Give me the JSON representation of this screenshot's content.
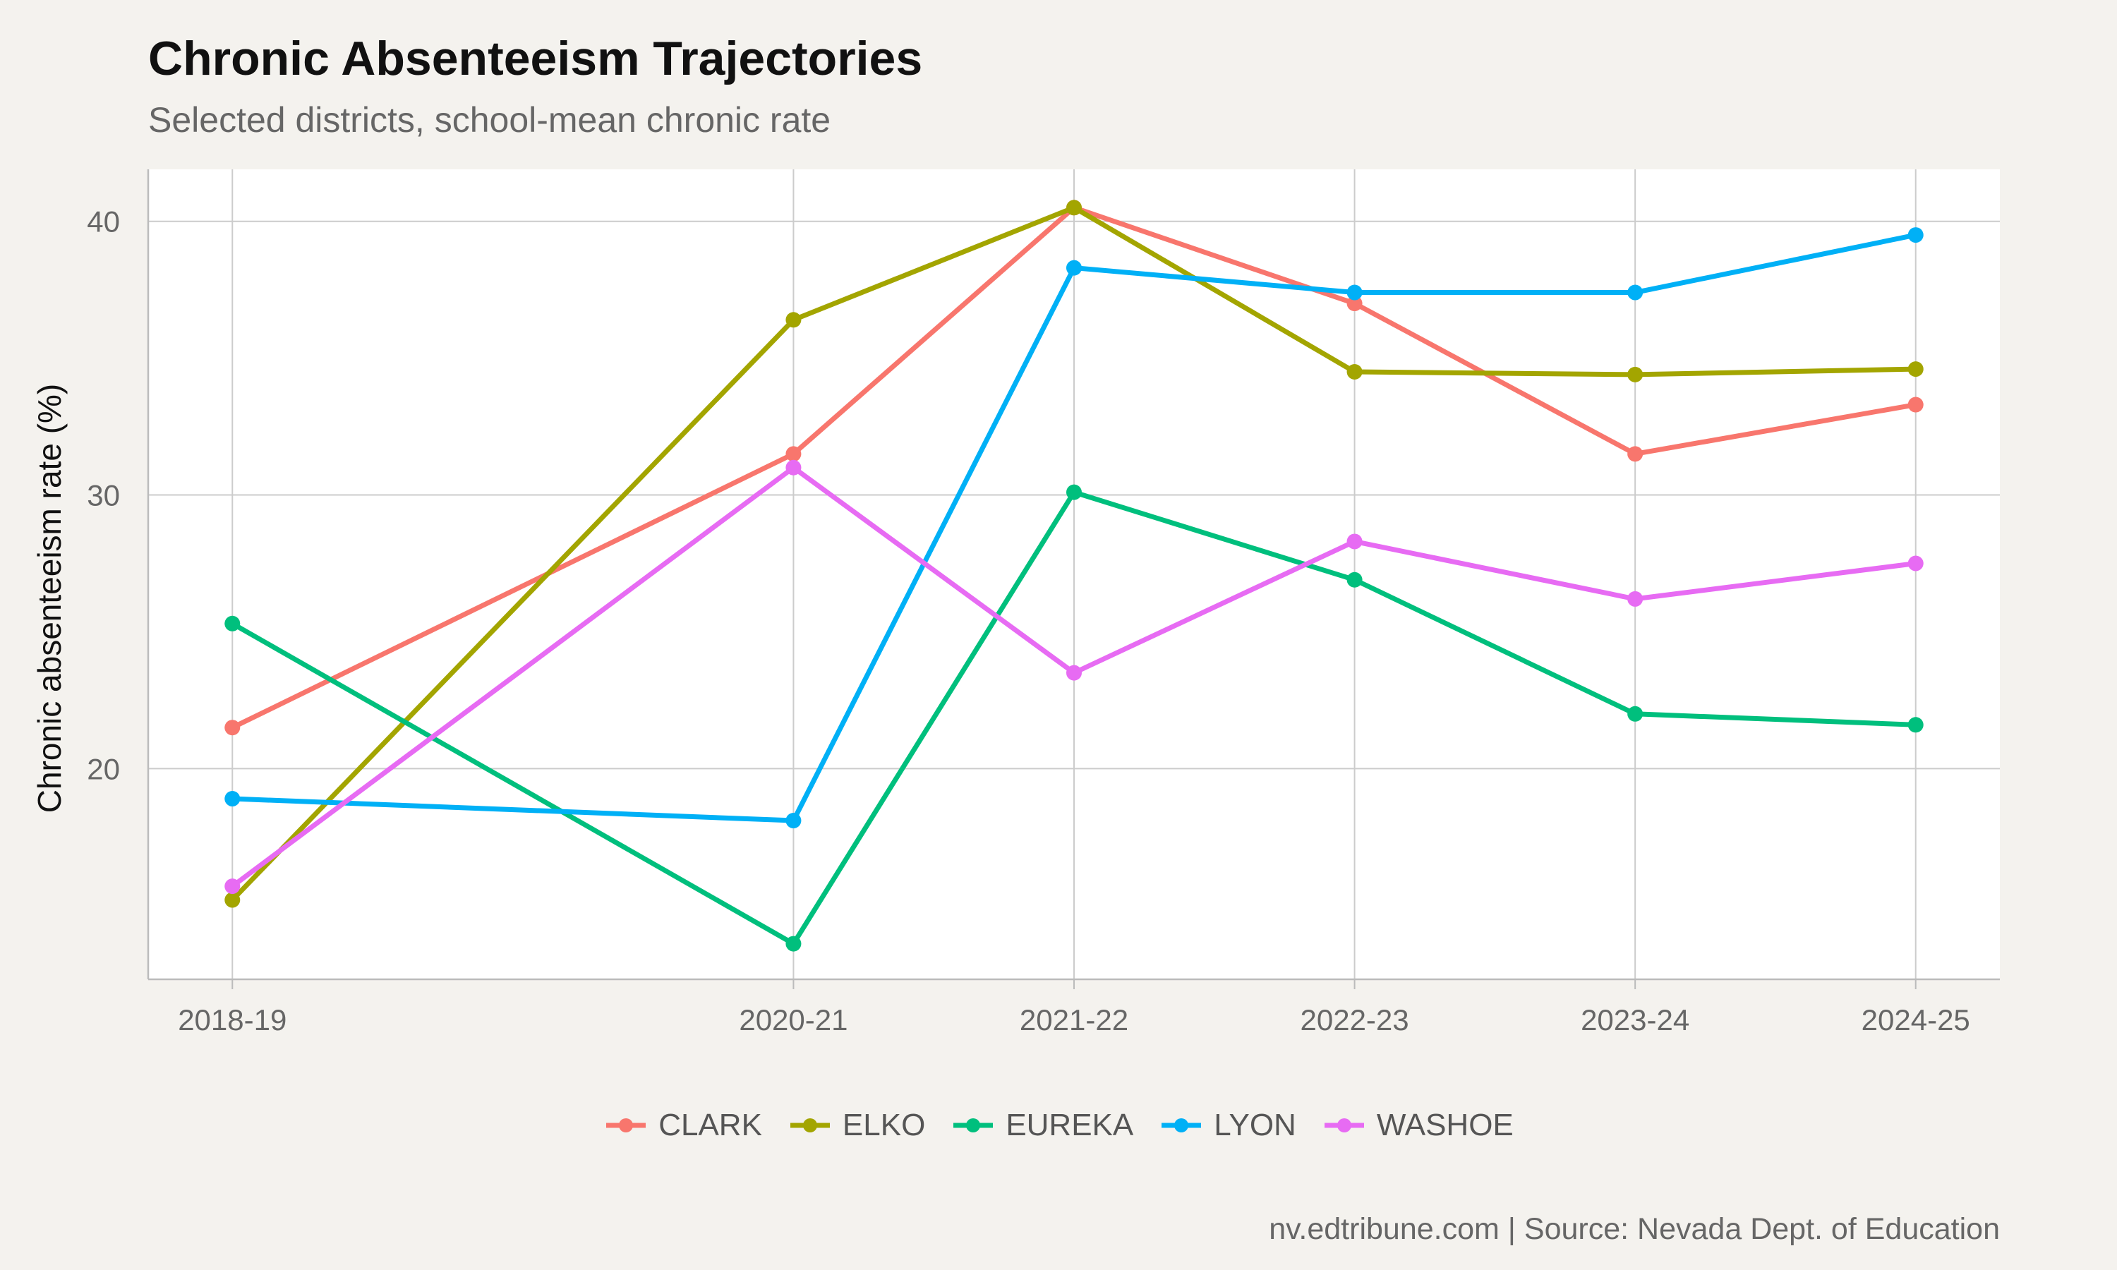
{
  "chart_data": {
    "type": "line",
    "title": "Chronic Absenteeism Trajectories",
    "subtitle": "Selected districts, school-mean chronic rate",
    "xlabel": "",
    "ylabel": "Chronic absenteeism rate (%)",
    "caption": "nv.edtribune.com | Source: Nevada Dept. of Education",
    "x": [
      "2018-19",
      "2020-21",
      "2021-22",
      "2022-23",
      "2023-24",
      "2024-25"
    ],
    "x_positions": [
      2018,
      2020,
      2021,
      2022,
      2023,
      2024
    ],
    "ylim": [
      12.3,
      41.9
    ],
    "yticks": [
      20,
      30,
      40
    ],
    "grid": true,
    "legend_position": "bottom",
    "series": [
      {
        "name": "CLARK",
        "color": "#F8766D",
        "values": [
          21.5,
          31.5,
          40.5,
          37.0,
          31.5,
          33.3
        ]
      },
      {
        "name": "ELKO",
        "color": "#A3A500",
        "values": [
          15.2,
          36.4,
          40.5,
          34.5,
          34.4,
          34.6
        ]
      },
      {
        "name": "EUREKA",
        "color": "#00BF7D",
        "values": [
          25.3,
          13.6,
          30.1,
          26.9,
          22.0,
          21.6
        ]
      },
      {
        "name": "LYON",
        "color": "#00B0F6",
        "values": [
          18.9,
          18.1,
          38.3,
          37.4,
          37.4,
          39.5
        ]
      },
      {
        "name": "WASHOE",
        "color": "#E76BF3",
        "values": [
          15.7,
          31.0,
          23.5,
          28.3,
          26.2,
          27.5
        ]
      }
    ]
  }
}
